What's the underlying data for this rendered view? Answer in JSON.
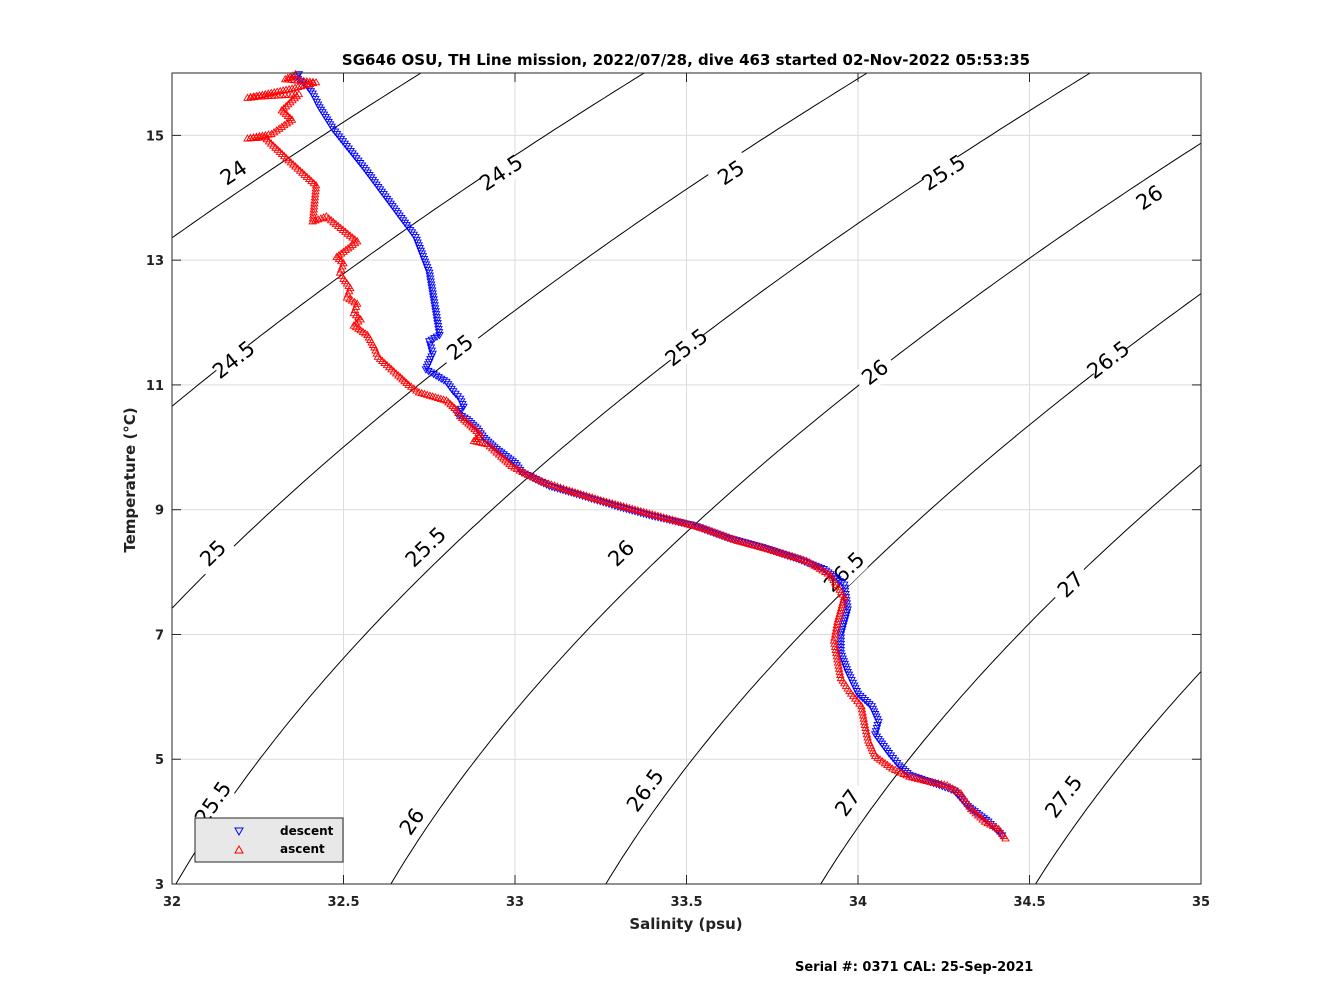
{
  "chart_data": {
    "type": "scatter",
    "title": "SG646 OSU, TH Line mission, 2022/07/28, dive 463 started 02-Nov-2022 05:53:35",
    "xlabel": "Salinity (psu)",
    "ylabel": "Temperature (°C)",
    "xlim": [
      32,
      35
    ],
    "ylim": [
      3,
      16
    ],
    "xticks": [
      32,
      32.5,
      33,
      33.5,
      34,
      34.5,
      35
    ],
    "xtick_labels": [
      "32",
      "32.5",
      "33",
      "33.5",
      "34",
      "34.5",
      "35"
    ],
    "yticks": [
      3,
      5,
      7,
      9,
      11,
      13,
      15
    ],
    "ytick_labels": [
      "3",
      "5",
      "7",
      "9",
      "11",
      "13",
      "15"
    ],
    "grid": true,
    "legend_position": "bottom-left",
    "series": [
      {
        "name": "descent",
        "marker": "triangle-down",
        "color": "#0000ff",
        "points": [
          [
            32.37,
            15.98
          ],
          [
            32.36,
            15.93
          ],
          [
            32.39,
            15.82
          ],
          [
            32.41,
            15.67
          ],
          [
            32.43,
            15.45
          ],
          [
            32.47,
            15.1
          ],
          [
            32.56,
            14.48
          ],
          [
            32.71,
            13.37
          ],
          [
            32.75,
            12.8
          ],
          [
            32.78,
            11.8
          ],
          [
            32.75,
            11.7
          ],
          [
            32.76,
            11.5
          ],
          [
            32.75,
            11.37
          ],
          [
            32.74,
            11.25
          ],
          [
            32.8,
            11.05
          ],
          [
            32.82,
            10.9
          ],
          [
            32.84,
            10.78
          ],
          [
            32.85,
            10.65
          ],
          [
            32.83,
            10.55
          ],
          [
            32.86,
            10.45
          ],
          [
            32.89,
            10.3
          ],
          [
            32.91,
            10.15
          ],
          [
            32.94,
            10.0
          ],
          [
            33.0,
            9.75
          ],
          [
            33.02,
            9.6
          ],
          [
            33.1,
            9.38
          ],
          [
            33.18,
            9.25
          ],
          [
            33.3,
            9.05
          ],
          [
            33.4,
            8.9
          ],
          [
            33.52,
            8.75
          ],
          [
            33.62,
            8.55
          ],
          [
            33.72,
            8.4
          ],
          [
            33.82,
            8.22
          ],
          [
            33.9,
            8.05
          ],
          [
            33.96,
            7.8
          ],
          [
            33.97,
            7.4
          ],
          [
            33.95,
            7.0
          ],
          [
            33.95,
            6.7
          ],
          [
            33.97,
            6.4
          ],
          [
            34.0,
            6.05
          ],
          [
            34.04,
            5.85
          ],
          [
            34.06,
            5.6
          ],
          [
            34.05,
            5.4
          ],
          [
            34.07,
            5.25
          ],
          [
            34.09,
            5.1
          ],
          [
            34.12,
            4.9
          ],
          [
            34.15,
            4.75
          ],
          [
            34.22,
            4.62
          ],
          [
            34.28,
            4.5
          ],
          [
            34.32,
            4.25
          ],
          [
            34.38,
            4.0
          ],
          [
            34.42,
            3.78
          ]
        ]
      },
      {
        "name": "ascent",
        "marker": "triangle-up",
        "color": "#ff0000",
        "points": [
          [
            32.36,
            15.98
          ],
          [
            32.33,
            15.9
          ],
          [
            32.42,
            15.85
          ],
          [
            32.35,
            15.75
          ],
          [
            32.22,
            15.6
          ],
          [
            32.25,
            15.62
          ],
          [
            32.28,
            15.63
          ],
          [
            32.31,
            15.64
          ],
          [
            32.34,
            15.65
          ],
          [
            32.37,
            15.66
          ],
          [
            32.32,
            15.4
          ],
          [
            32.35,
            15.25
          ],
          [
            32.29,
            15.02
          ],
          [
            32.22,
            14.95
          ],
          [
            32.27,
            14.97
          ],
          [
            32.34,
            14.6
          ],
          [
            32.42,
            14.2
          ],
          [
            32.41,
            13.62
          ],
          [
            32.45,
            13.7
          ],
          [
            32.54,
            13.3
          ],
          [
            32.48,
            13.05
          ],
          [
            32.5,
            12.95
          ],
          [
            32.49,
            12.8
          ],
          [
            32.5,
            12.7
          ],
          [
            32.52,
            12.55
          ],
          [
            32.51,
            12.4
          ],
          [
            32.54,
            12.3
          ],
          [
            32.53,
            12.15
          ],
          [
            32.55,
            12.05
          ],
          [
            32.53,
            11.95
          ],
          [
            32.57,
            11.8
          ],
          [
            32.59,
            11.6
          ],
          [
            32.6,
            11.45
          ],
          [
            32.66,
            11.15
          ],
          [
            32.69,
            11.0
          ],
          [
            32.72,
            10.88
          ],
          [
            32.8,
            10.75
          ],
          [
            32.83,
            10.6
          ],
          [
            32.84,
            10.5
          ],
          [
            32.87,
            10.35
          ],
          [
            32.9,
            10.2
          ],
          [
            32.88,
            10.1
          ],
          [
            32.92,
            10.05
          ],
          [
            32.96,
            9.85
          ],
          [
            32.99,
            9.7
          ],
          [
            33.03,
            9.58
          ],
          [
            33.08,
            9.45
          ],
          [
            33.15,
            9.32
          ],
          [
            33.25,
            9.15
          ],
          [
            33.35,
            9.0
          ],
          [
            33.45,
            8.85
          ],
          [
            33.55,
            8.7
          ],
          [
            33.65,
            8.5
          ],
          [
            33.75,
            8.35
          ],
          [
            33.85,
            8.18
          ],
          [
            33.92,
            7.95
          ],
          [
            33.96,
            7.6
          ],
          [
            33.94,
            7.2
          ],
          [
            33.93,
            6.9
          ],
          [
            33.94,
            6.6
          ],
          [
            33.95,
            6.3
          ],
          [
            33.98,
            6.05
          ],
          [
            34.01,
            5.85
          ],
          [
            34.02,
            5.55
          ],
          [
            34.03,
            5.3
          ],
          [
            34.05,
            5.05
          ],
          [
            34.1,
            4.85
          ],
          [
            34.15,
            4.72
          ],
          [
            34.2,
            4.65
          ],
          [
            34.26,
            4.58
          ],
          [
            34.3,
            4.45
          ],
          [
            34.33,
            4.2
          ],
          [
            34.37,
            4.0
          ],
          [
            34.41,
            3.88
          ],
          [
            34.43,
            3.73
          ]
        ]
      }
    ],
    "contours": [
      {
        "level": "24",
        "labels": [
          {
            "x": 32.18,
            "y": 14.4
          }
        ]
      },
      {
        "level": "24.5",
        "labels": [
          {
            "x": 32.18,
            "y": 11.4
          },
          {
            "x": 32.96,
            "y": 14.4
          }
        ]
      },
      {
        "level": "25",
        "labels": [
          {
            "x": 32.12,
            "y": 8.3
          },
          {
            "x": 32.84,
            "y": 11.6
          },
          {
            "x": 33.63,
            "y": 14.4
          }
        ]
      },
      {
        "level": "25.5",
        "labels": [
          {
            "x": 32.12,
            "y": 4.3
          },
          {
            "x": 32.74,
            "y": 8.4
          },
          {
            "x": 33.5,
            "y": 11.6
          },
          {
            "x": 34.25,
            "y": 14.4
          }
        ]
      },
      {
        "level": "26",
        "labels": [
          {
            "x": 32.7,
            "y": 4.0
          },
          {
            "x": 33.31,
            "y": 8.3
          },
          {
            "x": 34.05,
            "y": 11.2
          },
          {
            "x": 34.85,
            "y": 14.0
          }
        ]
      },
      {
        "level": "26.5",
        "labels": [
          {
            "x": 33.38,
            "y": 4.5
          },
          {
            "x": 33.96,
            "y": 8.0
          },
          {
            "x": 34.73,
            "y": 11.4
          }
        ]
      },
      {
        "level": "27",
        "labels": [
          {
            "x": 33.97,
            "y": 4.3
          },
          {
            "x": 34.62,
            "y": 7.8
          }
        ]
      },
      {
        "level": "27.5",
        "labels": [
          {
            "x": 34.6,
            "y": 4.4
          }
        ]
      }
    ]
  },
  "legend": {
    "descent_label": "descent",
    "ascent_label": "ascent"
  },
  "footer": {
    "serial": "Serial #: 0371  CAL: 25-Sep-2021"
  }
}
